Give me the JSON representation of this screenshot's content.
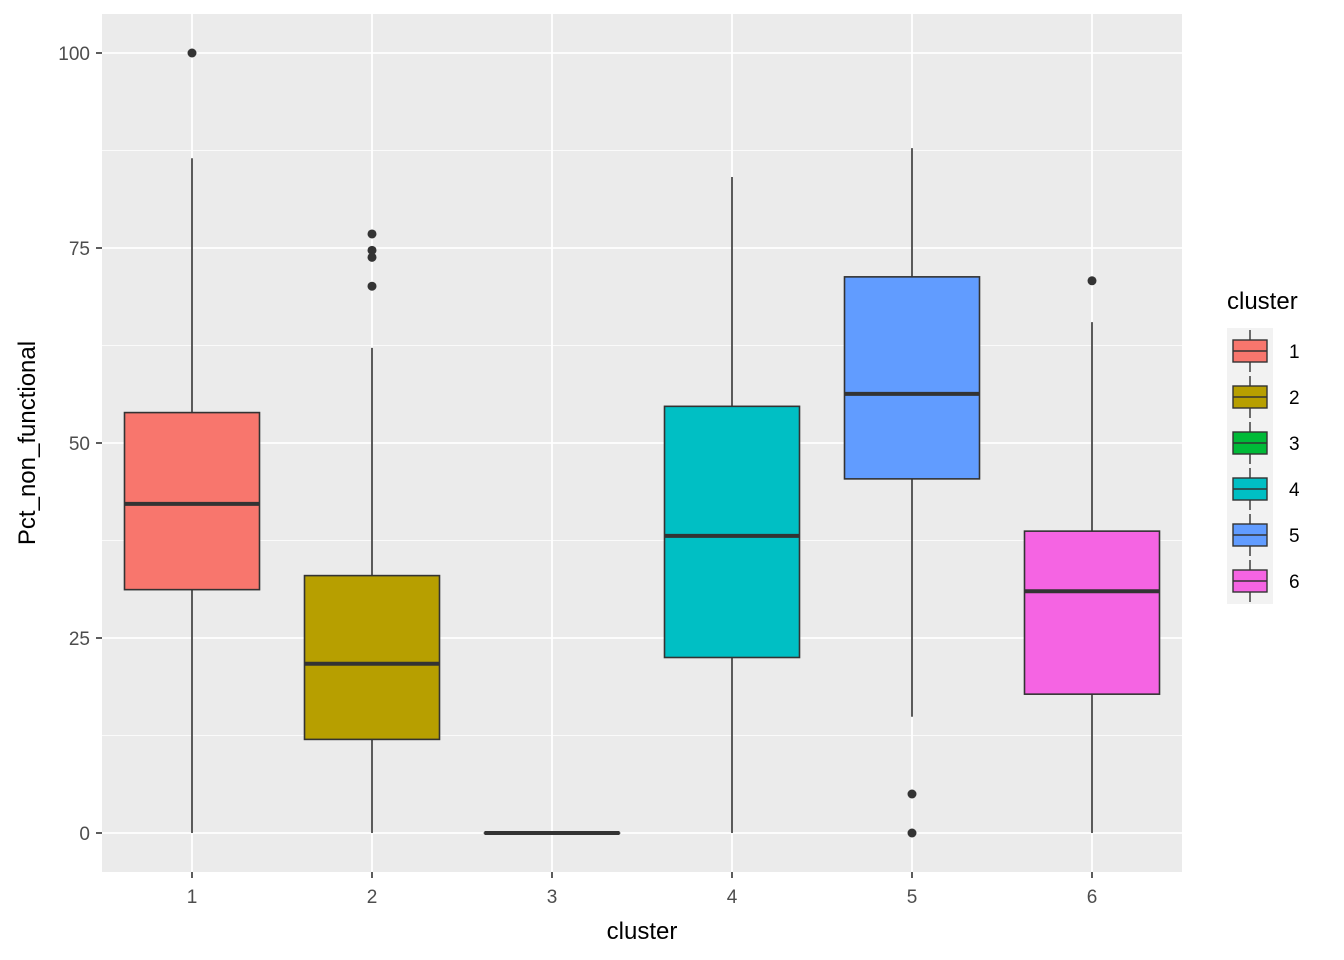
{
  "chart_data": {
    "type": "boxplot",
    "xlabel": "cluster",
    "ylabel": "Pct_non_functional",
    "ylim": [
      -5,
      105
    ],
    "yticks": [
      0,
      25,
      50,
      75,
      100
    ],
    "categories": [
      "1",
      "2",
      "3",
      "4",
      "5",
      "6"
    ],
    "legend": {
      "title": "cluster",
      "entries": [
        "1",
        "2",
        "3",
        "4",
        "5",
        "6"
      ],
      "position": "right"
    },
    "boxes": [
      {
        "category": "1",
        "color": "#F8766D",
        "q1": 31.2,
        "median": 42.2,
        "q3": 53.9,
        "whisker_low": 0,
        "whisker_high": 86.5,
        "outliers": [
          100
        ]
      },
      {
        "category": "2",
        "color": "#B79F00",
        "q1": 12.0,
        "median": 21.7,
        "q3": 33.0,
        "whisker_low": 0,
        "whisker_high": 62.2,
        "outliers": [
          76.8,
          74.7,
          73.8,
          70.1
        ]
      },
      {
        "category": "3",
        "color": "#00BA38",
        "q1": 0,
        "median": 0,
        "q3": 0,
        "whisker_low": 0,
        "whisker_high": 0,
        "outliers": []
      },
      {
        "category": "4",
        "color": "#00BFC4",
        "q1": 22.5,
        "median": 38.1,
        "q3": 54.7,
        "whisker_low": 0,
        "whisker_high": 84.1,
        "outliers": []
      },
      {
        "category": "5",
        "color": "#619CFF",
        "q1": 45.4,
        "median": 56.3,
        "q3": 71.3,
        "whisker_low": 14.9,
        "whisker_high": 87.8,
        "outliers": [
          5.0,
          0
        ]
      },
      {
        "category": "6",
        "color": "#F564E3",
        "q1": 17.8,
        "median": 31.0,
        "q3": 38.7,
        "whisker_low": 0,
        "whisker_high": 65.5,
        "outliers": [
          70.8
        ]
      }
    ],
    "grid": true,
    "panel_background": "#EBEBEB"
  }
}
